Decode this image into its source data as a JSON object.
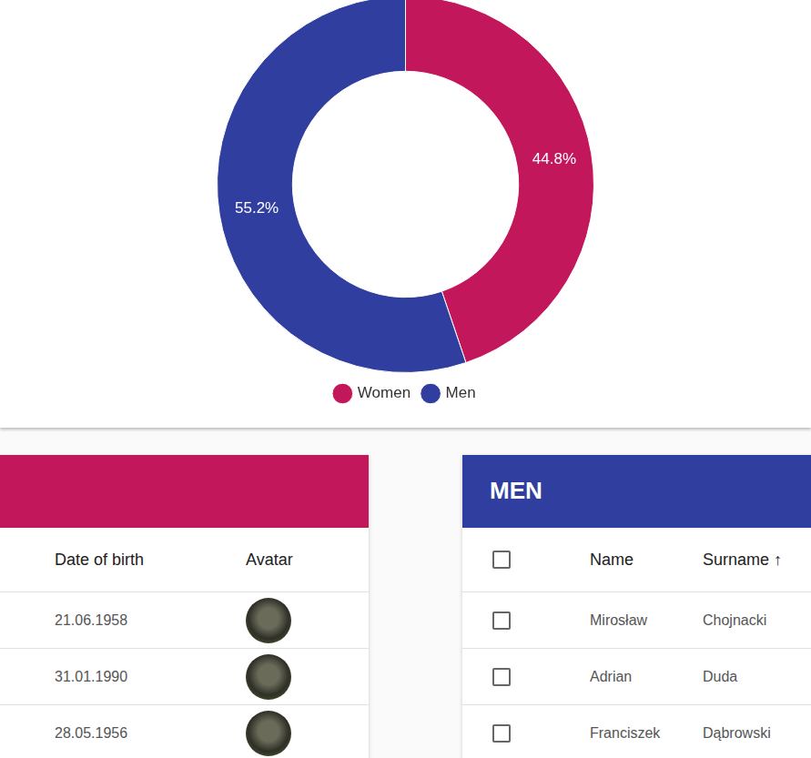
{
  "chart_data": {
    "type": "doughnut",
    "categories": [
      "Women",
      "Men"
    ],
    "values": [
      44.8,
      55.2
    ],
    "value_labels": [
      "44.8%",
      "55.2%"
    ],
    "colors": [
      "#c2185b",
      "#303f9f"
    ],
    "data_labels": true,
    "legend": "bottom"
  },
  "women_table": {
    "color": "#c2185b",
    "header": [
      "Date of birth",
      "Avatar"
    ],
    "rows": [
      [
        "21.06.1958"
      ],
      [
        "31.01.1990"
      ],
      [
        "28.05.1956"
      ]
    ]
  },
  "men_table": {
    "title": "MEN",
    "color": "#303f9f",
    "header": [
      "Name",
      "Surname ↑"
    ],
    "rows": [
      [
        "Mirosław",
        "Chojnacki"
      ],
      [
        "Adrian",
        "Duda"
      ],
      [
        "Franciszek",
        "Dąbrowski"
      ]
    ]
  }
}
